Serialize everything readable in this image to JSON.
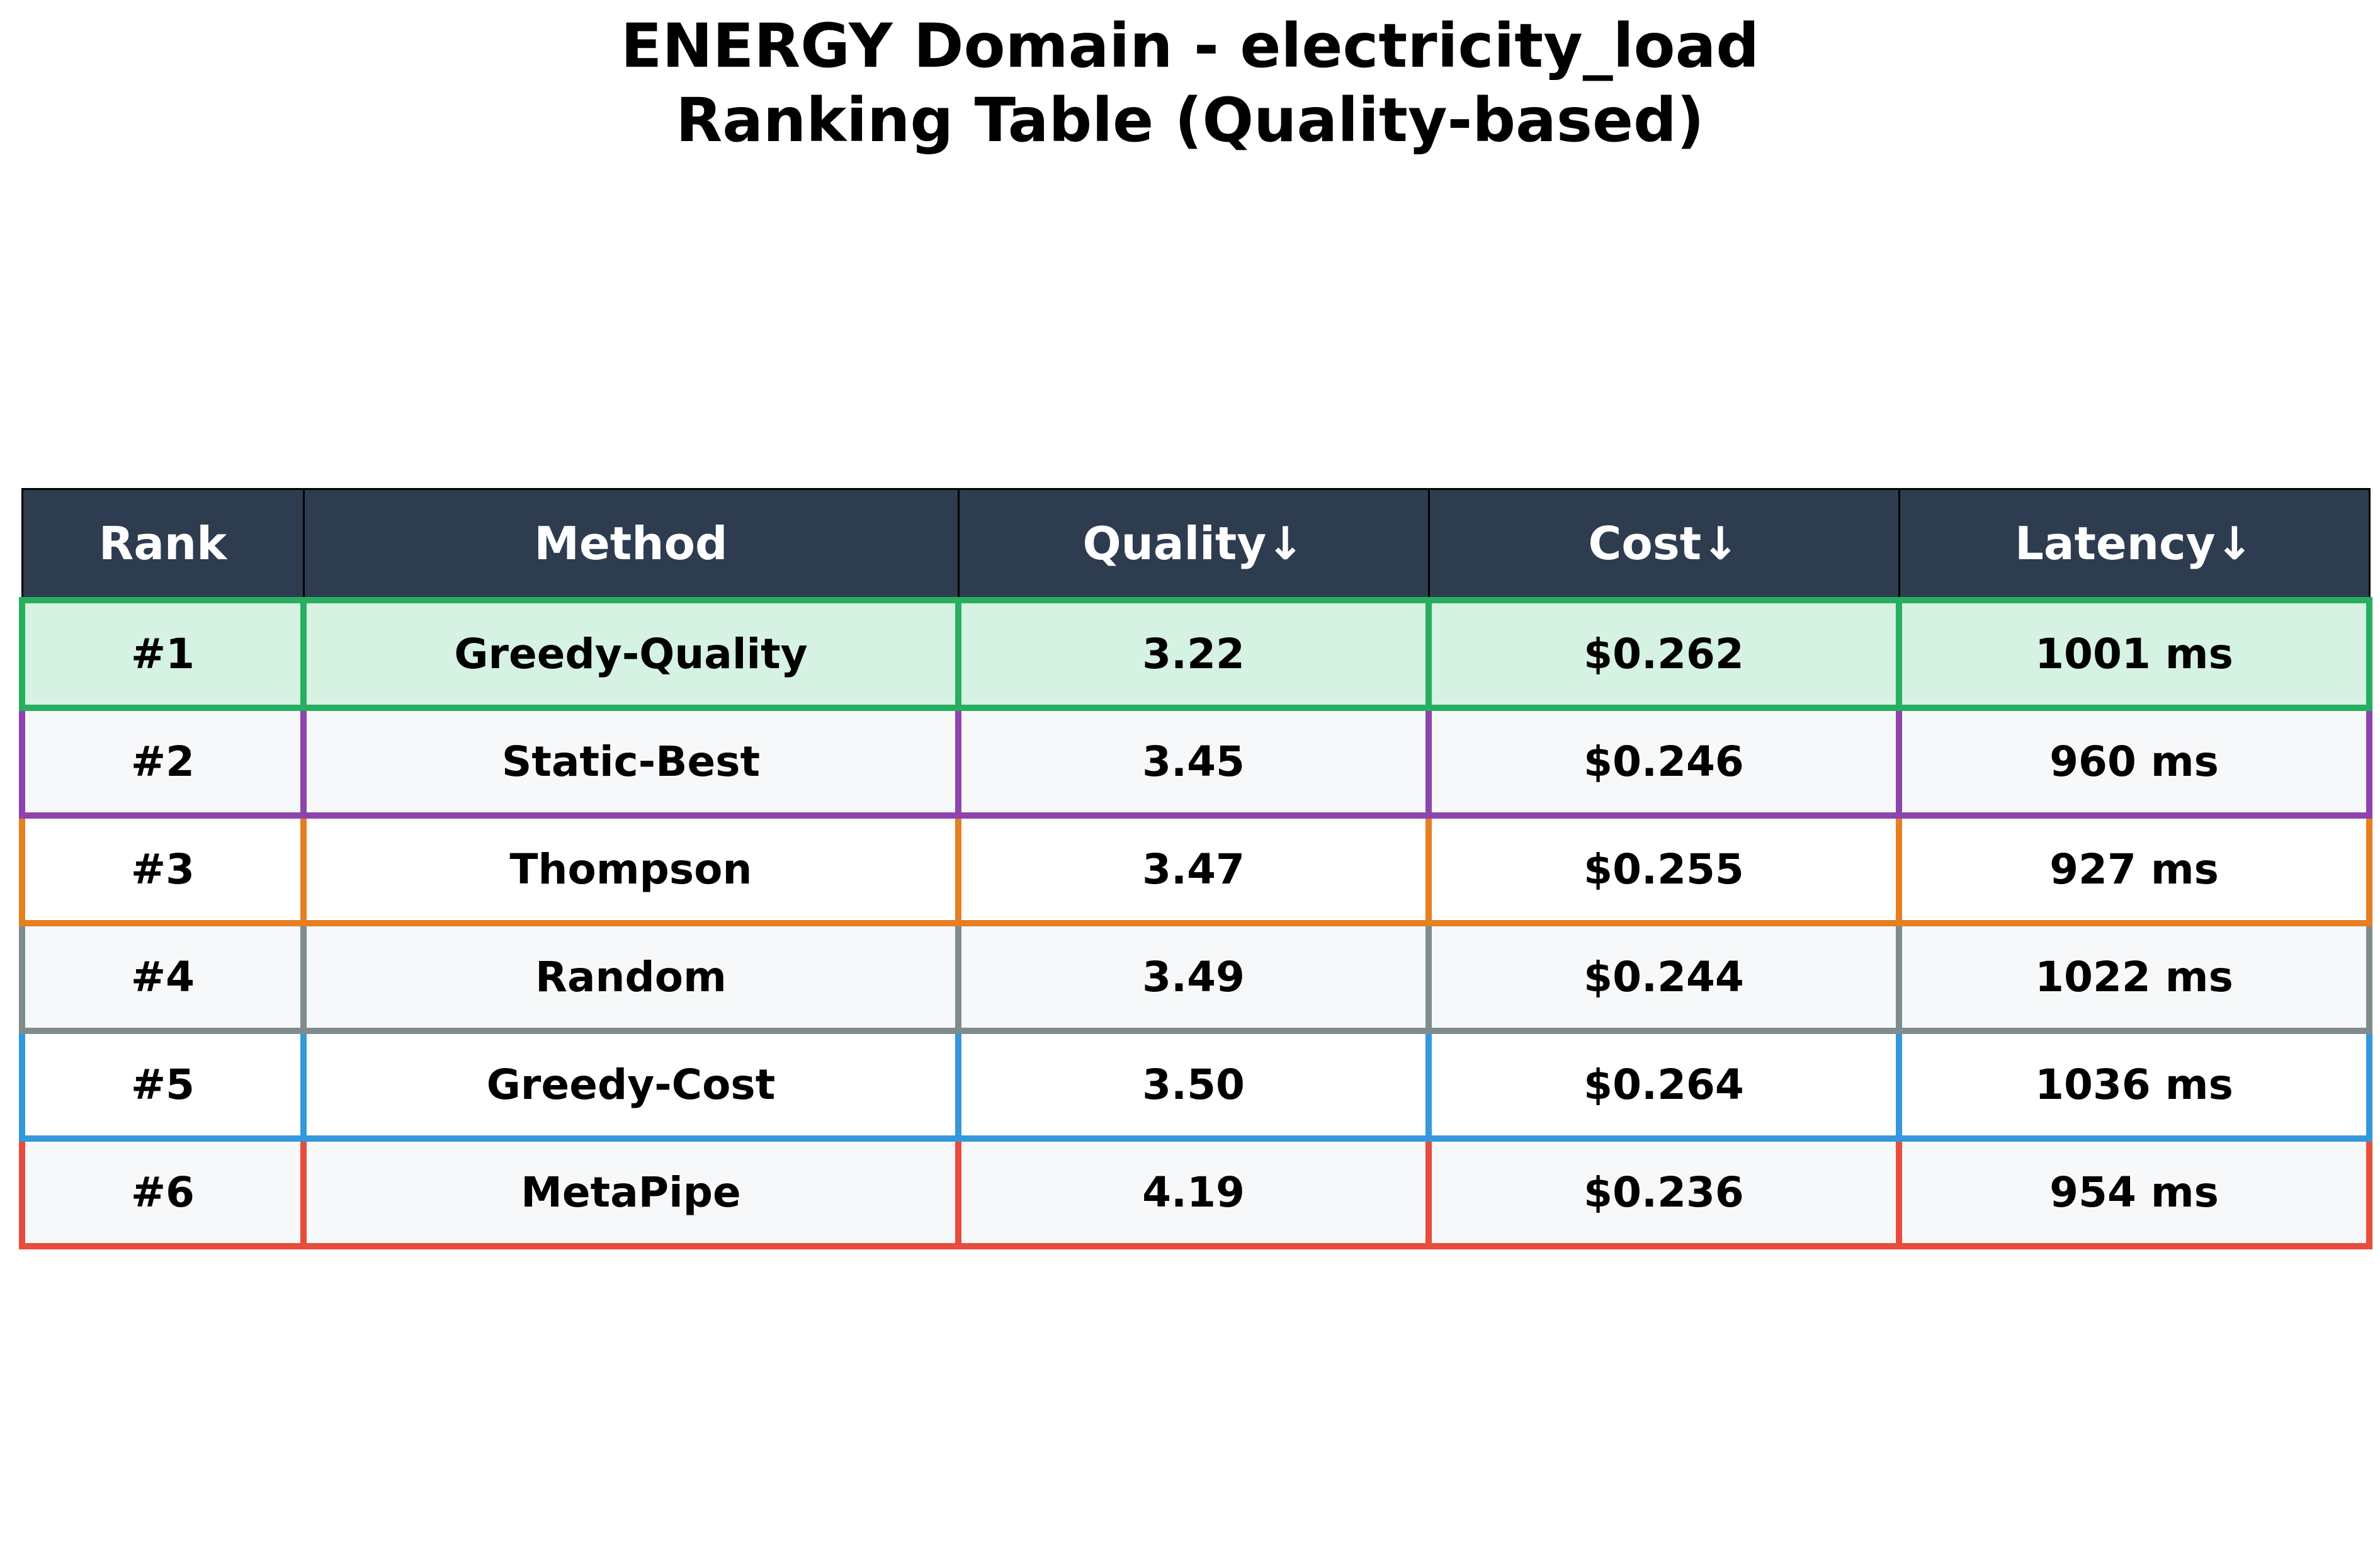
{
  "title": {
    "line1": "ENERGY Domain - electricity_load",
    "line2": "Ranking Table (Quality-based)"
  },
  "colors": {
    "header_bg": "#2e3c50",
    "header_text": "#ffffff",
    "row_bg_highlight": "#d5f2e3",
    "row_bg_even": "#f7f8fa",
    "row_bg_odd": "#ffffff"
  },
  "chart_data": {
    "type": "table",
    "title": "ENERGY Domain - electricity_load Ranking Table (Quality-based)",
    "columns": [
      "Rank",
      "Method",
      "Quality↓",
      "Cost↓",
      "Latency↓"
    ],
    "rows": [
      {
        "rank": "#1",
        "method": "Greedy-Quality",
        "quality": "3.22",
        "cost": "$0.262",
        "latency": "1001 ms",
        "border_color": "#27ae60",
        "bg": "#d5f2e3"
      },
      {
        "rank": "#2",
        "method": "Static-Best",
        "quality": "3.45",
        "cost": "$0.246",
        "latency": "960 ms",
        "border_color": "#8e44ad",
        "bg": "#f7f8fa"
      },
      {
        "rank": "#3",
        "method": "Thompson",
        "quality": "3.47",
        "cost": "$0.255",
        "latency": "927 ms",
        "border_color": "#e67e22",
        "bg": "#ffffff"
      },
      {
        "rank": "#4",
        "method": "Random",
        "quality": "3.49",
        "cost": "$0.244",
        "latency": "1022 ms",
        "border_color": "#7f8c8d",
        "bg": "#f7f8fa"
      },
      {
        "rank": "#5",
        "method": "Greedy-Cost",
        "quality": "3.50",
        "cost": "$0.264",
        "latency": "1036 ms",
        "border_color": "#3498db",
        "bg": "#ffffff"
      },
      {
        "rank": "#6",
        "method": "MetaPipe",
        "quality": "4.19",
        "cost": "$0.236",
        "latency": "954 ms",
        "border_color": "#e74c3c",
        "bg": "#f7f8fa"
      }
    ]
  }
}
